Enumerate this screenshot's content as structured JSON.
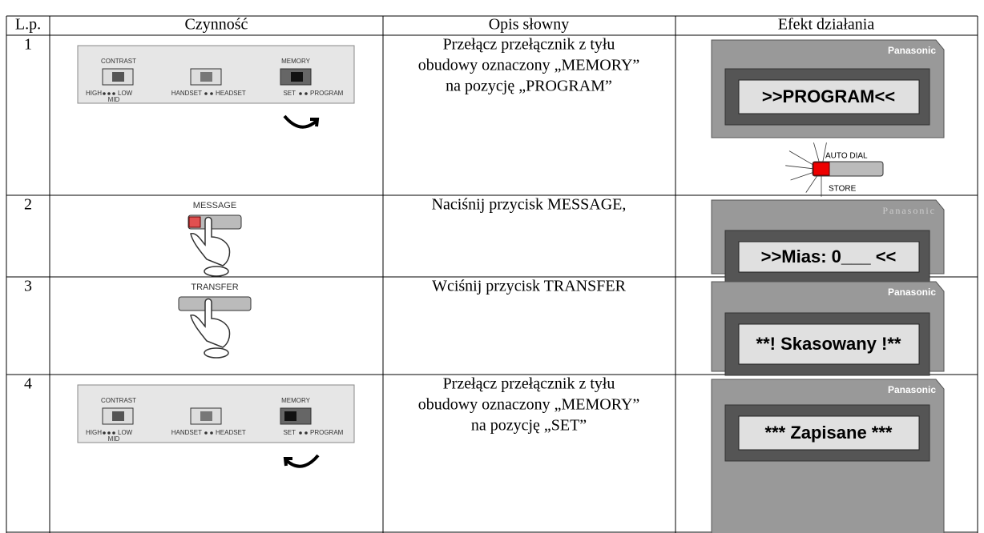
{
  "table": {
    "header": [
      "L.p.",
      "Czynność",
      "Opis słowny",
      "Efekt działania"
    ],
    "rows": [
      {
        "number": "1",
        "action": {
          "kind": "panel",
          "labels": {
            "contrast": "CONTRAST",
            "high": "HIGH",
            "low": "LOW",
            "mid": "MID",
            "handset": "HANDSET",
            "headset": "HEADSET",
            "memory": "MEMORY",
            "set": "SET",
            "program": "PROGRAM"
          }
        },
        "description": [
          "Przełącz przełącznik z tyłu",
          "obudowy oznaczony „MEMORY”",
          "na pozycję „PROGRAM”"
        ],
        "effect": {
          "brand": "Panasonic",
          "display": ">>PROGRAM<<",
          "indicator": {
            "top": "AUTO DIAL",
            "bottom": "STORE"
          }
        }
      },
      {
        "number": "2",
        "action": {
          "kind": "button",
          "label": "MESSAGE"
        },
        "description": [
          "Naciśnij przycisk MESSAGE,"
        ],
        "effect": {
          "brand": "Panasonic",
          "display": ">>Mias: 0___  <<"
        }
      },
      {
        "number": "3",
        "action": {
          "kind": "button",
          "label": "TRANSFER"
        },
        "description": [
          "Wciśnij przycisk TRANSFER"
        ],
        "effect": {
          "brand": "Panasonic",
          "display": "**! Skasowany !**"
        }
      },
      {
        "number": "4",
        "action": {
          "kind": "panel",
          "labels": {
            "contrast": "CONTRAST",
            "high": "HIGH",
            "low": "LOW",
            "mid": "MID",
            "handset": "HANDSET",
            "headset": "HEADSET",
            "memory": "MEMORY",
            "set": "SET",
            "program": "PROGRAM"
          }
        },
        "description": [
          "Przełącz przełącznik z tyłu",
          "obudowy oznaczony „MEMORY”",
          "na pozycję „SET”"
        ],
        "effect": {
          "brand": "Panasonic",
          "display": "*** Zapisane ***"
        }
      }
    ]
  }
}
